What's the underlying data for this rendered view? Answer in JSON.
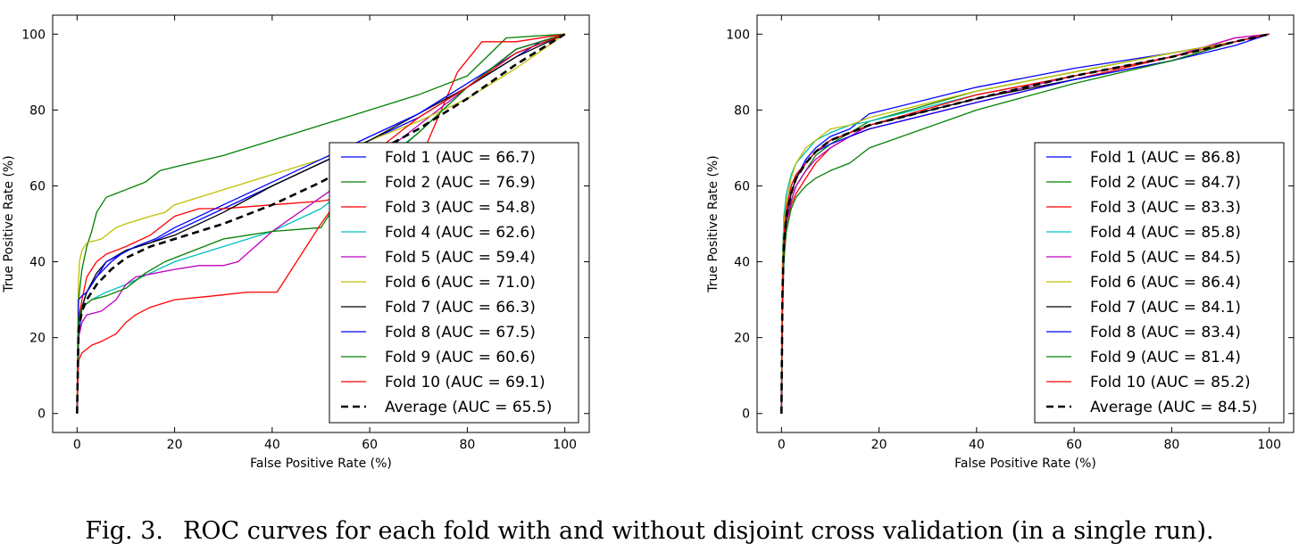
{
  "caption": {
    "label": "Fig. 3.",
    "text": "ROC curves for each fold with and without disjoint cross validation (in a single run)."
  },
  "colors": {
    "Fold 1": "#0000ff",
    "Fold 2": "#008000",
    "Fold 3": "#ff0000",
    "Fold 4": "#00bfbf",
    "Fold 5": "#bf00bf",
    "Fold 6": "#bfbf00",
    "Fold 7": "#000000",
    "Fold 8": "#0000ff",
    "Fold 9": "#008000",
    "Fold 10": "#ff0000",
    "Average": "#000000"
  },
  "chart_data": [
    {
      "type": "line",
      "title": "",
      "xlabel": "False Positive Rate (%)",
      "ylabel": "True Positive Rate (%)",
      "xlim": [
        -5,
        105
      ],
      "ylim": [
        -5,
        105
      ],
      "xticks": [
        0,
        20,
        40,
        60,
        80,
        100
      ],
      "yticks": [
        0,
        20,
        40,
        60,
        80,
        100
      ],
      "grid": false,
      "legend_position": "bottom-right",
      "series": [
        {
          "name": "Fold 1",
          "legend": "Fold 1 (AUC = 66.7)",
          "style": "solid",
          "x": [
            0,
            0.3,
            1,
            2,
            4,
            7,
            10,
            15,
            20,
            30,
            40,
            50,
            60,
            70,
            80,
            90,
            95,
            100
          ],
          "y": [
            0,
            20,
            28,
            32,
            36,
            40,
            43,
            45,
            48,
            54,
            60,
            66,
            72,
            78,
            86,
            94,
            98,
            100
          ]
        },
        {
          "name": "Fold 2",
          "legend": "Fold 2 (AUC = 76.9)",
          "style": "solid",
          "x": [
            0,
            0.3,
            1,
            2,
            3,
            4,
            5,
            6,
            8,
            10,
            12,
            14,
            16,
            17,
            20,
            30,
            40,
            50,
            60,
            70,
            80,
            88,
            100
          ],
          "y": [
            0,
            30,
            38,
            44,
            48,
            53,
            55,
            57,
            58,
            59,
            60,
            61,
            63,
            64,
            65,
            68,
            72,
            76,
            80,
            84,
            89,
            99,
            100
          ]
        },
        {
          "name": "Fold 3",
          "legend": "Fold 3 (AUC = 54.8)",
          "style": "solid",
          "x": [
            0,
            0.3,
            1,
            2,
            4,
            6,
            10,
            15,
            20,
            25,
            30,
            40,
            50,
            60,
            65,
            70,
            78,
            83,
            90,
            100
          ],
          "y": [
            0,
            25,
            30,
            36,
            40,
            42,
            44,
            47,
            52,
            54,
            54,
            55,
            56,
            58,
            60,
            66,
            90,
            98,
            98,
            100
          ]
        },
        {
          "name": "Fold 4",
          "legend": "Fold 4 (AUC = 62.6)",
          "style": "solid",
          "x": [
            0,
            0.3,
            1,
            3,
            6,
            10,
            15,
            20,
            30,
            40,
            50,
            60,
            70,
            80,
            90,
            100
          ],
          "y": [
            0,
            24,
            28,
            30,
            32,
            34,
            37,
            40,
            44,
            48,
            54,
            64,
            74,
            86,
            96,
            100
          ]
        },
        {
          "name": "Fold 5",
          "legend": "Fold 5 (AUC = 59.4)",
          "style": "solid",
          "x": [
            0,
            0.3,
            1,
            2,
            5,
            8,
            10,
            12,
            16,
            20,
            25,
            30,
            33,
            40,
            50,
            60,
            70,
            80,
            90,
            100
          ],
          "y": [
            0,
            20,
            24,
            26,
            27,
            30,
            34,
            36,
            37,
            38,
            39,
            39,
            40,
            48,
            57,
            66,
            76,
            86,
            96,
            100
          ]
        },
        {
          "name": "Fold 6",
          "legend": "Fold 6 (AUC = 71.0)",
          "style": "solid",
          "x": [
            0,
            0.2,
            0.5,
            1,
            2,
            5,
            8,
            10,
            15,
            18,
            20,
            30,
            40,
            50,
            60,
            70,
            80,
            90,
            100
          ],
          "y": [
            0,
            32,
            40,
            43,
            45,
            46,
            49,
            50,
            52,
            53,
            55,
            59,
            63,
            67,
            72,
            77,
            83,
            91,
            100
          ]
        },
        {
          "name": "Fold 7",
          "legend": "Fold 7 (AUC = 66.3)",
          "style": "solid",
          "x": [
            0,
            0.3,
            1,
            2,
            4,
            6,
            10,
            15,
            20,
            30,
            40,
            50,
            60,
            70,
            80,
            90,
            100
          ],
          "y": [
            0,
            24,
            28,
            32,
            37,
            40,
            43,
            45,
            47,
            53,
            60,
            66,
            72,
            79,
            86,
            94,
            100
          ]
        },
        {
          "name": "Fold 8",
          "legend": "Fold 8 (AUC = 67.5)",
          "style": "solid",
          "x": [
            0,
            0.3,
            1,
            2,
            4,
            6,
            9,
            12,
            16,
            20,
            30,
            40,
            50,
            60,
            70,
            80,
            90,
            100
          ],
          "y": [
            0,
            30,
            31,
            32,
            36,
            40,
            42,
            44,
            46,
            49,
            55,
            61,
            67,
            73,
            79,
            87,
            95,
            100
          ]
        },
        {
          "name": "Fold 9",
          "legend": "Fold 9 (AUC = 60.6)",
          "style": "solid",
          "x": [
            0,
            0.3,
            1,
            3,
            6,
            10,
            14,
            18,
            22,
            26,
            30,
            40,
            50,
            53,
            60,
            70,
            80,
            90,
            100
          ],
          "y": [
            0,
            25,
            28,
            30,
            31,
            33,
            37,
            40,
            42,
            44,
            46,
            48,
            49,
            55,
            63,
            74,
            86,
            96,
            100
          ]
        },
        {
          "name": "Fold 10",
          "legend": "Fold 10 (AUC = 69.1)",
          "style": "solid",
          "x": [
            0,
            0.3,
            1,
            3,
            5,
            8,
            10,
            12,
            15,
            20,
            28,
            35,
            41,
            50,
            60,
            70,
            80,
            90,
            100
          ],
          "y": [
            0,
            14,
            16,
            18,
            19,
            21,
            24,
            26,
            28,
            30,
            31,
            32,
            32,
            50,
            68,
            78,
            86,
            95,
            100
          ]
        },
        {
          "name": "Average",
          "legend": "Average (AUC = 65.5)",
          "style": "dashed",
          "x": [
            0,
            0.3,
            1,
            2,
            4,
            7,
            10,
            15,
            20,
            30,
            40,
            50,
            60,
            70,
            80,
            90,
            100
          ],
          "y": [
            0,
            22,
            27,
            30,
            34,
            38,
            41,
            44,
            46,
            50,
            55,
            61,
            68,
            75,
            83,
            92,
            100
          ]
        }
      ]
    },
    {
      "type": "line",
      "title": "",
      "xlabel": "False Positive Rate (%)",
      "ylabel": "True Positive Rate (%)",
      "xlim": [
        -5,
        105
      ],
      "ylim": [
        -5,
        105
      ],
      "xticks": [
        0,
        20,
        40,
        60,
        80,
        100
      ],
      "yticks": [
        0,
        20,
        40,
        60,
        80,
        100
      ],
      "grid": false,
      "legend_position": "bottom-right",
      "series": [
        {
          "name": "Fold 1",
          "legend": "Fold 1 (AUC = 86.8)",
          "style": "solid",
          "x": [
            0,
            0.2,
            0.5,
            1,
            2,
            3,
            5,
            7,
            10,
            14,
            18,
            40,
            60,
            80,
            93,
            100
          ],
          "y": [
            0,
            30,
            45,
            52,
            58,
            62,
            67,
            70,
            73,
            75,
            79,
            86,
            91,
            95,
            98,
            100
          ]
        },
        {
          "name": "Fold 2",
          "legend": "Fold 2 (AUC = 84.7)",
          "style": "solid",
          "x": [
            0,
            0.2,
            0.5,
            1,
            2,
            3,
            5,
            7,
            10,
            14,
            18,
            40,
            60,
            80,
            93,
            100
          ],
          "y": [
            0,
            28,
            42,
            50,
            56,
            60,
            64,
            68,
            71,
            74,
            77,
            85,
            90,
            95,
            98,
            100
          ]
        },
        {
          "name": "Fold 3",
          "legend": "Fold 3 (AUC = 83.3)",
          "style": "solid",
          "x": [
            0,
            0.2,
            0.5,
            1,
            2,
            3,
            5,
            7,
            10,
            14,
            18,
            40,
            60,
            80,
            93,
            100
          ],
          "y": [
            0,
            30,
            44,
            50,
            55,
            58,
            62,
            66,
            70,
            73,
            75,
            82,
            88,
            94,
            99,
            100
          ]
        },
        {
          "name": "Fold 4",
          "legend": "Fold 4 (AUC = 85.8)",
          "style": "solid",
          "x": [
            0,
            0.2,
            0.5,
            1,
            2,
            3,
            5,
            7,
            10,
            14,
            18,
            40,
            60,
            80,
            93,
            100
          ],
          "y": [
            0,
            40,
            52,
            58,
            63,
            66,
            69,
            72,
            74,
            76,
            77,
            84,
            89,
            94,
            98,
            100
          ]
        },
        {
          "name": "Fold 5",
          "legend": "Fold 5 (AUC = 84.5)",
          "style": "solid",
          "x": [
            0,
            0.2,
            0.5,
            1,
            2,
            3,
            5,
            7,
            10,
            14,
            18,
            40,
            60,
            80,
            93,
            100
          ],
          "y": [
            0,
            28,
            42,
            50,
            56,
            60,
            64,
            67,
            70,
            73,
            76,
            83,
            89,
            94,
            99,
            100
          ]
        },
        {
          "name": "Fold 6",
          "legend": "Fold 6 (AUC = 86.4)",
          "style": "solid",
          "x": [
            0,
            0.2,
            0.5,
            1,
            2,
            3,
            5,
            7,
            10,
            14,
            18,
            40,
            60,
            80,
            93,
            100
          ],
          "y": [
            0,
            38,
            50,
            56,
            62,
            66,
            70,
            72,
            75,
            76,
            78,
            85,
            90,
            95,
            98,
            100
          ]
        },
        {
          "name": "Fold 7",
          "legend": "Fold 7 (AUC = 84.1)",
          "style": "solid",
          "x": [
            0,
            0.2,
            0.5,
            1,
            2,
            3,
            5,
            7,
            10,
            14,
            18,
            40,
            60,
            80,
            93,
            100
          ],
          "y": [
            0,
            30,
            44,
            52,
            58,
            62,
            66,
            69,
            72,
            74,
            76,
            83,
            88,
            93,
            98,
            100
          ]
        },
        {
          "name": "Fold 8",
          "legend": "Fold 8 (AUC = 83.4)",
          "style": "solid",
          "x": [
            0,
            0.2,
            0.5,
            1,
            2,
            3,
            5,
            7,
            10,
            14,
            18,
            40,
            60,
            80,
            93,
            100
          ],
          "y": [
            0,
            30,
            46,
            54,
            60,
            63,
            66,
            69,
            71,
            73,
            75,
            82,
            88,
            93,
            97,
            100
          ]
        },
        {
          "name": "Fold 9",
          "legend": "Fold 9 (AUC = 81.4)",
          "style": "solid",
          "x": [
            0,
            0.2,
            0.5,
            1,
            2,
            3,
            5,
            7,
            10,
            14,
            18,
            40,
            60,
            80,
            93,
            100
          ],
          "y": [
            0,
            26,
            40,
            48,
            54,
            57,
            60,
            62,
            64,
            66,
            70,
            80,
            87,
            93,
            98,
            100
          ]
        },
        {
          "name": "Fold 10",
          "legend": "Fold 10 (AUC = 85.2)",
          "style": "solid",
          "x": [
            0,
            0.2,
            0.5,
            1,
            2,
            3,
            5,
            7,
            10,
            14,
            18,
            40,
            60,
            80,
            93,
            100
          ],
          "y": [
            0,
            32,
            46,
            54,
            60,
            63,
            66,
            69,
            72,
            74,
            76,
            84,
            89,
            94,
            98,
            100
          ]
        },
        {
          "name": "Average",
          "legend": "Average (AUC = 84.5)",
          "style": "dashed",
          "x": [
            0,
            0.2,
            0.5,
            1,
            2,
            3,
            5,
            7,
            10,
            14,
            18,
            40,
            60,
            80,
            93,
            100
          ],
          "y": [
            0,
            31,
            45,
            52,
            58,
            62,
            66,
            69,
            72,
            74,
            76,
            83,
            89,
            94,
            98,
            100
          ]
        }
      ]
    }
  ]
}
